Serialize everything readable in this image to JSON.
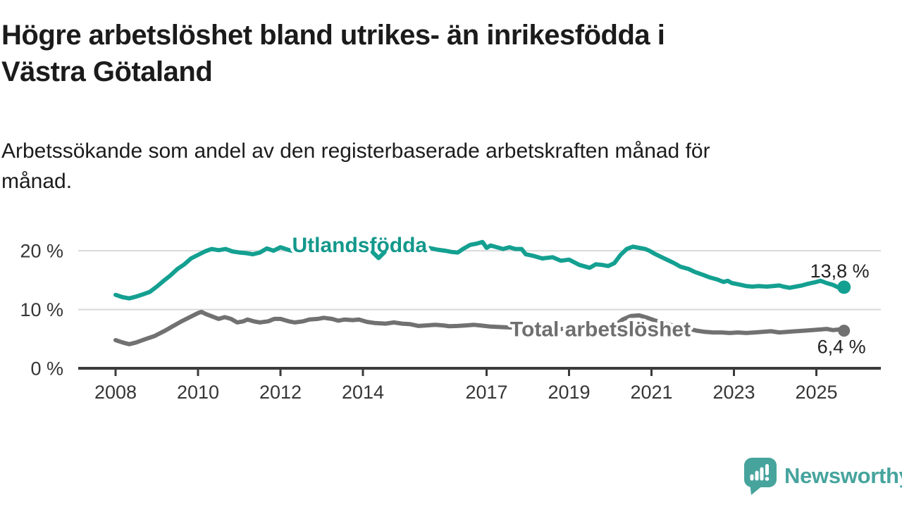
{
  "header": {
    "title": "Högre arbetslöshet bland utrikes- än inrikesfödda i\nVästra Götaland",
    "subtitle": "Arbetssökande som andel av den registerbaserade arbetskraften månad för\nmånad."
  },
  "footer": {
    "brand": "Newsworthy",
    "brand_color": "#46a49d"
  },
  "chart_data": {
    "type": "line",
    "unit": "%",
    "x_axis": {
      "ticks": [
        2008,
        2010,
        2012,
        2014,
        2017,
        2019,
        2021,
        2023,
        2025
      ],
      "range": [
        2007.1,
        2026.6
      ]
    },
    "y_axis": {
      "ticks": [
        {
          "value": 0,
          "label": "0 %"
        },
        {
          "value": 10,
          "label": "10 %"
        },
        {
          "value": 20,
          "label": "20 %"
        }
      ],
      "range": [
        0,
        23
      ]
    },
    "colors": {
      "grid": "#d9d9d9",
      "axis": "#3b3b3b",
      "tick_text": "#363636",
      "value_text": "#222222"
    },
    "annotations": [
      {
        "type": "chevron-down",
        "x": 2014.38,
        "y": 19.78,
        "color": "#14a091"
      }
    ],
    "series": [
      {
        "id": "utlandsfodda",
        "name": "Utlandsfödda",
        "color": "#14a091",
        "label_color": "#12988b",
        "label_pos": [
          2013.92,
          21.0
        ],
        "end_label": "13,8 %",
        "end_value": 13.8,
        "points": [
          [
            2008.0,
            12.5
          ],
          [
            2008.17,
            12.1
          ],
          [
            2008.33,
            11.9
          ],
          [
            2008.5,
            12.2
          ],
          [
            2008.67,
            12.6
          ],
          [
            2008.83,
            13.0
          ],
          [
            2009.0,
            13.9
          ],
          [
            2009.17,
            14.9
          ],
          [
            2009.33,
            15.8
          ],
          [
            2009.5,
            16.9
          ],
          [
            2009.67,
            17.7
          ],
          [
            2009.83,
            18.7
          ],
          [
            2010.0,
            19.3
          ],
          [
            2010.17,
            19.9
          ],
          [
            2010.33,
            20.3
          ],
          [
            2010.5,
            20.1
          ],
          [
            2010.67,
            20.3
          ],
          [
            2010.83,
            19.9
          ],
          [
            2011.0,
            19.7
          ],
          [
            2011.17,
            19.6
          ],
          [
            2011.33,
            19.4
          ],
          [
            2011.5,
            19.7
          ],
          [
            2011.67,
            20.4
          ],
          [
            2011.83,
            20.0
          ],
          [
            2012.0,
            20.6
          ],
          [
            2012.17,
            20.2
          ],
          [
            2012.33,
            19.9
          ],
          [
            2012.5,
            20.1
          ],
          [
            2012.67,
            20.3
          ],
          [
            2012.83,
            20.6
          ],
          [
            2012.95,
            20.9
          ],
          [
            2013.1,
            20.4
          ],
          [
            2013.25,
            20.2
          ],
          [
            2013.4,
            20.45
          ],
          [
            2013.55,
            20.3
          ],
          [
            2013.7,
            20.45
          ],
          [
            2013.85,
            20.2
          ],
          [
            2014.0,
            20.4
          ],
          [
            2014.2,
            20.3
          ],
          [
            2014.4,
            20.5
          ],
          [
            2014.6,
            20.4
          ],
          [
            2014.8,
            20.2
          ],
          [
            2015.0,
            20.35
          ],
          [
            2015.2,
            20.45
          ],
          [
            2015.4,
            20.3
          ],
          [
            2015.6,
            20.5
          ],
          [
            2015.8,
            20.2
          ],
          [
            2016.0,
            20.0
          ],
          [
            2016.15,
            19.8
          ],
          [
            2016.3,
            19.7
          ],
          [
            2016.45,
            20.4
          ],
          [
            2016.6,
            21.0
          ],
          [
            2016.75,
            21.2
          ],
          [
            2016.9,
            21.5
          ],
          [
            2017.0,
            20.5
          ],
          [
            2017.1,
            20.9
          ],
          [
            2017.25,
            20.6
          ],
          [
            2017.4,
            20.3
          ],
          [
            2017.55,
            20.6
          ],
          [
            2017.7,
            20.3
          ],
          [
            2017.85,
            20.3
          ],
          [
            2017.95,
            19.4
          ],
          [
            2018.15,
            19.1
          ],
          [
            2018.35,
            18.7
          ],
          [
            2018.6,
            18.9
          ],
          [
            2018.8,
            18.3
          ],
          [
            2019.0,
            18.5
          ],
          [
            2019.25,
            17.6
          ],
          [
            2019.5,
            17.1
          ],
          [
            2019.65,
            17.7
          ],
          [
            2019.8,
            17.6
          ],
          [
            2019.95,
            17.4
          ],
          [
            2020.1,
            17.9
          ],
          [
            2020.25,
            19.3
          ],
          [
            2020.4,
            20.3
          ],
          [
            2020.55,
            20.7
          ],
          [
            2020.7,
            20.5
          ],
          [
            2020.85,
            20.3
          ],
          [
            2020.95,
            20.0
          ],
          [
            2021.1,
            19.4
          ],
          [
            2021.25,
            18.9
          ],
          [
            2021.4,
            18.4
          ],
          [
            2021.55,
            17.9
          ],
          [
            2021.7,
            17.3
          ],
          [
            2021.9,
            16.9
          ],
          [
            2022.05,
            16.4
          ],
          [
            2022.25,
            15.9
          ],
          [
            2022.4,
            15.5
          ],
          [
            2022.6,
            15.1
          ],
          [
            2022.75,
            14.7
          ],
          [
            2022.85,
            14.9
          ],
          [
            2022.95,
            14.5
          ],
          [
            2023.1,
            14.3
          ],
          [
            2023.3,
            14.0
          ],
          [
            2023.45,
            13.9
          ],
          [
            2023.6,
            14.0
          ],
          [
            2023.8,
            13.9
          ],
          [
            2023.95,
            14.0
          ],
          [
            2024.1,
            14.1
          ],
          [
            2024.2,
            13.9
          ],
          [
            2024.35,
            13.7
          ],
          [
            2024.5,
            13.9
          ],
          [
            2024.65,
            14.1
          ],
          [
            2024.8,
            14.4
          ],
          [
            2025.0,
            14.7
          ],
          [
            2025.1,
            14.9
          ],
          [
            2025.25,
            14.5
          ],
          [
            2025.4,
            14.2
          ],
          [
            2025.55,
            13.7
          ],
          [
            2025.67,
            13.8
          ]
        ]
      },
      {
        "id": "total",
        "name": "Total arbetslöshet",
        "color": "#717171",
        "label_color": "#6f6f6f",
        "label_pos": [
          2019.76,
          6.65
        ],
        "end_label": "6,4 %",
        "end_value": 6.4,
        "points": [
          [
            2008.0,
            4.8
          ],
          [
            2008.17,
            4.4
          ],
          [
            2008.33,
            4.1
          ],
          [
            2008.5,
            4.4
          ],
          [
            2008.7,
            4.9
          ],
          [
            2008.95,
            5.5
          ],
          [
            2009.2,
            6.4
          ],
          [
            2009.4,
            7.2
          ],
          [
            2009.6,
            8.0
          ],
          [
            2009.8,
            8.7
          ],
          [
            2010.0,
            9.4
          ],
          [
            2010.08,
            9.6
          ],
          [
            2010.2,
            9.2
          ],
          [
            2010.35,
            8.8
          ],
          [
            2010.5,
            8.4
          ],
          [
            2010.65,
            8.7
          ],
          [
            2010.8,
            8.4
          ],
          [
            2010.95,
            7.8
          ],
          [
            2011.1,
            8.0
          ],
          [
            2011.2,
            8.3
          ],
          [
            2011.35,
            8.0
          ],
          [
            2011.5,
            7.8
          ],
          [
            2011.7,
            8.0
          ],
          [
            2011.85,
            8.4
          ],
          [
            2012.0,
            8.4
          ],
          [
            2012.2,
            8.0
          ],
          [
            2012.35,
            7.8
          ],
          [
            2012.55,
            8.0
          ],
          [
            2012.7,
            8.3
          ],
          [
            2012.9,
            8.4
          ],
          [
            2013.05,
            8.6
          ],
          [
            2013.25,
            8.4
          ],
          [
            2013.4,
            8.1
          ],
          [
            2013.55,
            8.3
          ],
          [
            2013.75,
            8.2
          ],
          [
            2013.9,
            8.3
          ],
          [
            2014.1,
            7.9
          ],
          [
            2014.3,
            7.7
          ],
          [
            2014.55,
            7.6
          ],
          [
            2014.75,
            7.8
          ],
          [
            2014.95,
            7.6
          ],
          [
            2015.15,
            7.5
          ],
          [
            2015.35,
            7.2
          ],
          [
            2015.55,
            7.3
          ],
          [
            2015.75,
            7.4
          ],
          [
            2015.95,
            7.3
          ],
          [
            2016.1,
            7.15
          ],
          [
            2016.3,
            7.2
          ],
          [
            2016.5,
            7.3
          ],
          [
            2016.7,
            7.4
          ],
          [
            2016.9,
            7.25
          ],
          [
            2017.1,
            7.1
          ],
          [
            2017.4,
            7.0
          ],
          [
            2017.7,
            6.9
          ],
          [
            2018.0,
            6.85
          ],
          [
            2018.4,
            6.75
          ],
          [
            2018.8,
            6.7
          ],
          [
            2019.2,
            6.6
          ],
          [
            2019.5,
            6.5
          ],
          [
            2019.9,
            6.6
          ],
          [
            2020.1,
            7.2
          ],
          [
            2020.3,
            8.3
          ],
          [
            2020.5,
            8.9
          ],
          [
            2020.7,
            9.0
          ],
          [
            2020.9,
            8.6
          ],
          [
            2021.1,
            8.1
          ],
          [
            2021.3,
            7.7
          ],
          [
            2021.5,
            7.3
          ],
          [
            2021.7,
            7.0
          ],
          [
            2021.9,
            6.7
          ],
          [
            2022.1,
            6.4
          ],
          [
            2022.3,
            6.2
          ],
          [
            2022.5,
            6.1
          ],
          [
            2022.7,
            6.1
          ],
          [
            2022.9,
            6.0
          ],
          [
            2023.1,
            6.1
          ],
          [
            2023.3,
            6.0
          ],
          [
            2023.5,
            6.1
          ],
          [
            2023.7,
            6.2
          ],
          [
            2023.9,
            6.3
          ],
          [
            2024.1,
            6.1
          ],
          [
            2024.3,
            6.2
          ],
          [
            2024.5,
            6.3
          ],
          [
            2024.7,
            6.4
          ],
          [
            2024.9,
            6.5
          ],
          [
            2025.1,
            6.6
          ],
          [
            2025.25,
            6.7
          ],
          [
            2025.4,
            6.5
          ],
          [
            2025.55,
            6.6
          ],
          [
            2025.67,
            6.4
          ]
        ]
      }
    ]
  }
}
